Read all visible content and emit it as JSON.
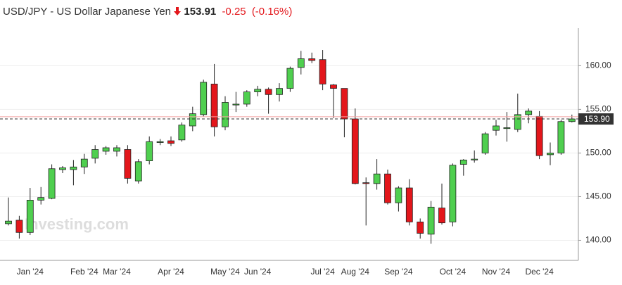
{
  "chart_data": {
    "type": "candlestick",
    "title": "USD/JPY - US Dollar Japanese Yen",
    "price": "153.91",
    "change": "-0.25",
    "change_pct": "(-0.16%)",
    "watermark": "Investing.com",
    "categories": [
      null,
      null,
      "Jan '24",
      null,
      null,
      null,
      null,
      "Feb '24",
      null,
      null,
      "Mar '24",
      null,
      null,
      null,
      null,
      "Apr '24",
      null,
      null,
      null,
      null,
      "May '24",
      null,
      null,
      "Jun '24",
      null,
      null,
      null,
      null,
      null,
      "Jul '24",
      null,
      null,
      "Aug '24",
      null,
      null,
      null,
      "Sep '24",
      null,
      null,
      null,
      null,
      "Oct '24",
      null,
      null,
      null,
      "Nov '24",
      null,
      null,
      null,
      "Dec '24",
      null,
      null,
      null
    ],
    "open": [
      141.9,
      142.3,
      140.9,
      144.6,
      144.8,
      148.1,
      148.1,
      148.4,
      149.4,
      150.2,
      150.2,
      150.4,
      146.8,
      149.1,
      151.2,
      151.4,
      151.5,
      153.1,
      154.4,
      157.9,
      153.0,
      155.5,
      155.6,
      157.0,
      157.3,
      156.7,
      157.4,
      159.8,
      160.8,
      160.7,
      157.8,
      157.4,
      153.9,
      146.6,
      146.5,
      147.6,
      144.3,
      146.0,
      142.1,
      140.7,
      143.7,
      142.1,
      148.7,
      149.2,
      150.0,
      152.6,
      152.8,
      152.7,
      154.4,
      154.2,
      149.8,
      150.0,
      153.6
    ],
    "high": [
      144.9,
      142.8,
      146.0,
      146.1,
      148.7,
      148.5,
      149.2,
      149.9,
      150.9,
      150.8,
      150.9,
      150.9,
      149.3,
      151.9,
      151.6,
      151.9,
      153.5,
      155.3,
      158.4,
      160.2,
      156.5,
      157.0,
      157.2,
      157.7,
      157.5,
      158.0,
      159.9,
      161.7,
      161.5,
      161.8,
      157.9,
      157.4,
      155.1,
      147.2,
      149.3,
      148.1,
      146.2,
      147.0,
      142.5,
      144.5,
      146.5,
      148.8,
      149.3,
      150.3,
      152.4,
      153.8,
      154.7,
      156.8,
      155.1,
      154.8,
      151.2,
      153.8,
      154.4
    ],
    "low": [
      141.7,
      140.2,
      140.6,
      144.1,
      144.7,
      147.7,
      146.3,
      147.6,
      148.8,
      149.8,
      149.6,
      146.5,
      146.5,
      148.7,
      150.9,
      150.8,
      151.3,
      152.5,
      154.2,
      151.9,
      152.6,
      154.7,
      155.3,
      156.5,
      154.5,
      155.9,
      157.0,
      159.0,
      160.3,
      157.2,
      154.0,
      151.8,
      146.4,
      141.7,
      145.8,
      144.1,
      143.3,
      141.7,
      140.2,
      139.6,
      141.8,
      141.6,
      147.4,
      148.9,
      149.8,
      152.0,
      151.3,
      152.4,
      153.4,
      149.3,
      148.6,
      149.8,
      153.5
    ],
    "close": [
      142.2,
      140.9,
      144.6,
      144.9,
      148.2,
      148.3,
      148.4,
      149.3,
      150.4,
      150.6,
      150.6,
      147.1,
      149.0,
      151.3,
      151.3,
      151.1,
      153.2,
      154.5,
      158.1,
      153.0,
      155.8,
      155.6,
      157.0,
      157.3,
      156.7,
      157.4,
      159.7,
      160.8,
      160.6,
      157.9,
      157.4,
      153.9,
      146.5,
      146.5,
      147.6,
      144.3,
      146.0,
      142.1,
      140.8,
      143.8,
      142.0,
      148.6,
      149.2,
      149.3,
      152.2,
      153.1,
      152.9,
      154.4,
      154.8,
      149.7,
      150.0,
      153.6,
      153.9
    ],
    "up_color": "#4fcf4f",
    "down_color": "#e3161b",
    "last_price": {
      "value": 153.9,
      "label": "153.90"
    },
    "prev_close": 154.16,
    "ylim": [
      137.7,
      163.9
    ],
    "yticks": [
      {
        "value": 140,
        "label": "140.00"
      },
      {
        "value": 145,
        "label": "145.00"
      },
      {
        "value": 150,
        "label": "150.00"
      },
      {
        "value": 155,
        "label": "155.00"
      },
      {
        "value": 160,
        "label": "160.00"
      }
    ],
    "grid": true
  }
}
